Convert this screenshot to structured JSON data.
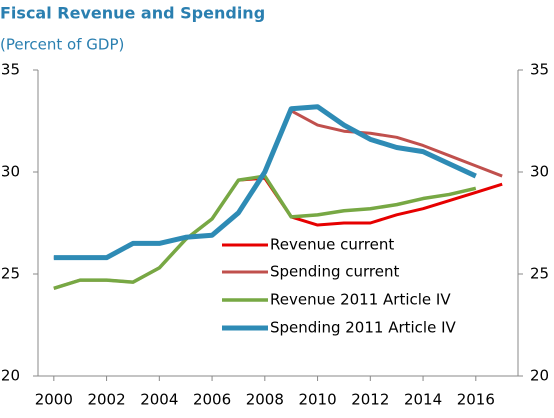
{
  "chart_data": {
    "type": "line",
    "title": "Fiscal Revenue and Spending",
    "subtitle": "(Percent of GDP)",
    "x": [
      2000,
      2001,
      2002,
      2003,
      2004,
      2005,
      2006,
      2007,
      2008,
      2009,
      2010,
      2011,
      2012,
      2013,
      2014,
      2015,
      2016,
      2017
    ],
    "xlim": [
      1999.4,
      2017.6
    ],
    "xticks": [
      2000,
      2002,
      2004,
      2006,
      2008,
      2010,
      2012,
      2014,
      2016
    ],
    "ylim": [
      20,
      35
    ],
    "yticks": [
      20,
      25,
      30,
      35
    ],
    "y2lim": [
      20,
      35
    ],
    "y2ticks": [
      20,
      25,
      30,
      35
    ],
    "grid": false,
    "series": [
      {
        "name": "Revenue current",
        "color": "#e60000",
        "width": 3,
        "values": [
          24.3,
          24.7,
          24.7,
          24.6,
          25.3,
          26.7,
          27.7,
          29.6,
          29.7,
          27.8,
          27.4,
          27.5,
          27.5,
          27.9,
          28.2,
          28.6,
          29.0,
          29.4
        ]
      },
      {
        "name": "Spending current",
        "color": "#c0504d",
        "width": 3,
        "values": [
          25.8,
          25.8,
          25.8,
          26.5,
          26.5,
          26.8,
          26.9,
          28.0,
          30.0,
          33.0,
          32.3,
          32.0,
          31.9,
          31.7,
          31.3,
          30.8,
          30.3,
          29.8
        ]
      },
      {
        "name": "Revenue 2011 Article IV",
        "color": "#77a844",
        "width": 3.5,
        "values": [
          24.3,
          24.7,
          24.7,
          24.6,
          25.3,
          26.7,
          27.7,
          29.6,
          29.8,
          27.8,
          27.9,
          28.1,
          28.2,
          28.4,
          28.7,
          28.9,
          29.2,
          null
        ]
      },
      {
        "name": "Spending 2011 Article IV",
        "color": "#2e8bb5",
        "width": 5,
        "values": [
          25.8,
          25.8,
          25.8,
          26.5,
          26.5,
          26.8,
          26.9,
          28.0,
          30.0,
          33.1,
          33.2,
          32.3,
          31.6,
          31.2,
          31.0,
          30.4,
          29.8,
          null
        ]
      }
    ]
  }
}
